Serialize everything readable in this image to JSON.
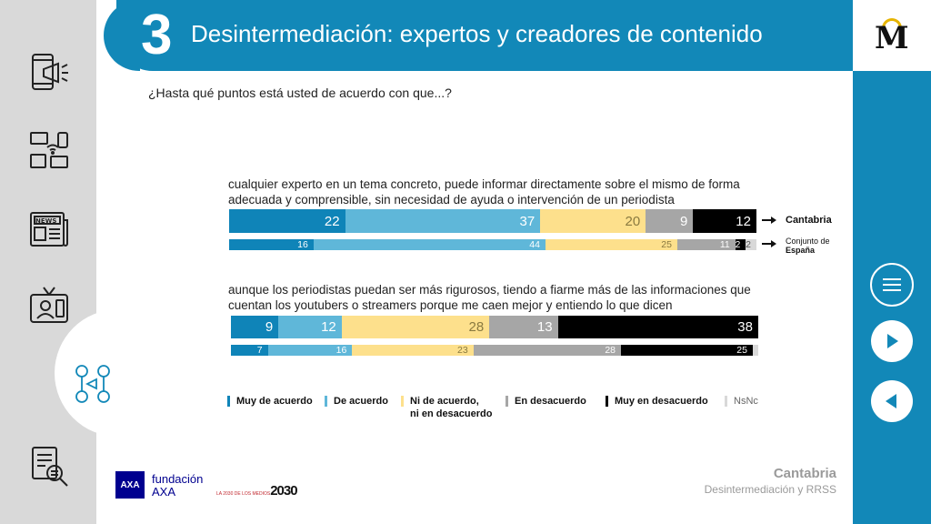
{
  "header": {
    "section_number": "3",
    "title": "Desintermediación: expertos y creadores de contenido"
  },
  "question": "¿Hasta qué puntos está usted de acuerdo con que...?",
  "statements": [
    {
      "text": "cualquier experto en un tema concreto, puede informar directamente sobre el mismo de forma adecuada y comprensible, sin necesidad de ayuda o intervención de un periodista",
      "rows": [
        {
          "label": "Cantabria",
          "values": [
            22,
            37,
            20,
            9,
            12,
            0
          ]
        },
        {
          "label": "Conjunto de España",
          "values": [
            16,
            44,
            25,
            11,
            2,
            2
          ]
        }
      ]
    },
    {
      "text": "aunque los periodistas puedan ser más rigurosos, tiendo a fiarme más de las informaciones que cuentan los youtubers o streamers porque me caen mejor y entiendo lo que dicen",
      "rows": [
        {
          "label": "",
          "values": [
            9,
            12,
            28,
            13,
            38,
            0
          ]
        },
        {
          "label": "",
          "values": [
            7,
            16,
            23,
            28,
            25,
            1
          ]
        }
      ]
    }
  ],
  "row_labels": {
    "cantabria": "Cantabria",
    "espana_line1": "Conjunto de",
    "espana_line2": "España"
  },
  "legend": [
    {
      "label": "Muy de acuerdo",
      "color": "#0f84b8"
    },
    {
      "label": "De acuerdo",
      "color": "#5fb7d9"
    },
    {
      "label": "Ni de acuerdo,\nni en desacuerdo",
      "color": "#fde08c"
    },
    {
      "label": "En desacuerdo",
      "color": "#a6a6a6"
    },
    {
      "label": "Muy en desacuerdo",
      "color": "#000000"
    },
    {
      "label": "NsNc",
      "color": "#d9d9d9"
    }
  ],
  "chart_data": {
    "type": "bar",
    "stacked": true,
    "orientation": "horizontal",
    "categories": [
      "Muy de acuerdo",
      "De acuerdo",
      "Ni de acuerdo, ni en desacuerdo",
      "En desacuerdo",
      "Muy en desacuerdo",
      "NsNc"
    ],
    "groups": [
      {
        "series": [
          {
            "name": "Cantabria",
            "values": [
              22,
              37,
              20,
              9,
              12,
              0
            ]
          },
          {
            "name": "Conjunto de España",
            "values": [
              16,
              44,
              25,
              11,
              2,
              2
            ]
          }
        ]
      },
      {
        "series": [
          {
            "name": "Cantabria",
            "values": [
              9,
              12,
              28,
              13,
              38,
              0
            ]
          },
          {
            "name": "Conjunto de España",
            "values": [
              7,
              16,
              23,
              28,
              25,
              1
            ]
          }
        ]
      }
    ]
  },
  "footer": {
    "region": "Cantabria",
    "subtitle": "Desintermediación y RRSS"
  },
  "brand": {
    "fundacion": "fundación",
    "axa": "AXA",
    "axa_logo": "AXA",
    "year_small": "LA 2030 DE LOS MEDIOS",
    "year": "2030"
  },
  "logo": {
    "letter": "M"
  }
}
